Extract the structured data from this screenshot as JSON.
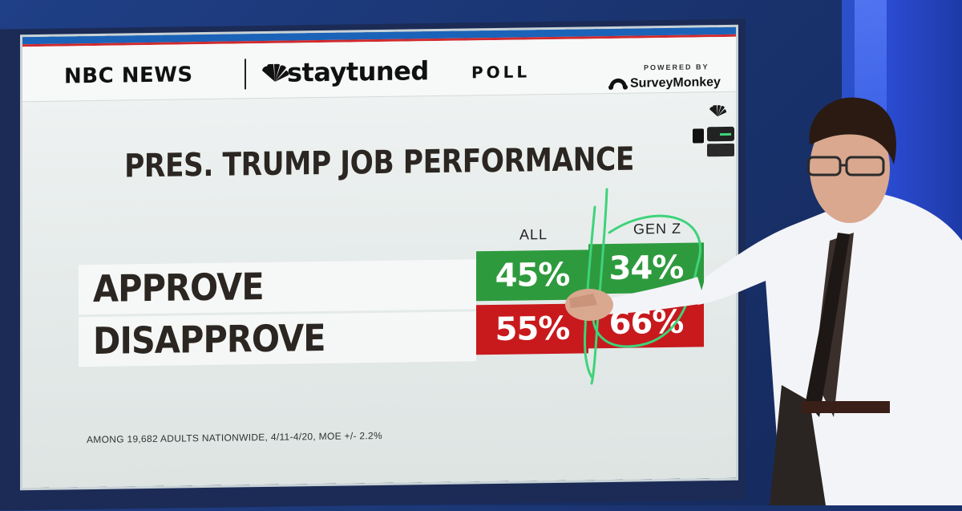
{
  "brand": {
    "network": "NBC NEWS",
    "show": "staytuned",
    "product": "POLL",
    "powered_by": "POWERED BY",
    "sponsor": "SurveyMonkey"
  },
  "title": "PRES. TRUMP JOB PERFORMANCE",
  "columns": [
    "ALL",
    "GEN Z"
  ],
  "rows": [
    {
      "label": "APPROVE",
      "all": "45%",
      "genz": "34%"
    },
    {
      "label": "DISAPPROVE",
      "all": "55%",
      "genz": "66%"
    }
  ],
  "footnote": "AMONG 19,682 ADULTS NATIONWIDE, 4/11-4/20, MOE +/- 2.2%",
  "colors": {
    "approve": "#2e9a3e",
    "disapprove": "#c8191d",
    "annotation": "#3ed37a",
    "header_blue": "#1b63b8",
    "header_red": "#d12a2d"
  },
  "icons": [
    "peacock-icon",
    "surveymonkey-icon",
    "lock-icon",
    "pen-icon"
  ]
}
